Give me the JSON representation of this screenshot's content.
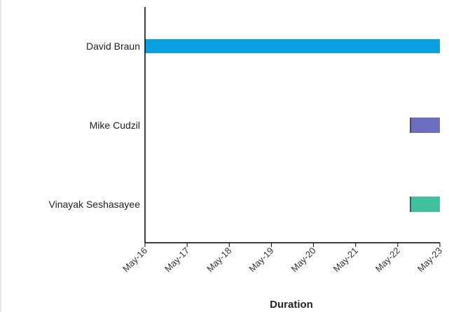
{
  "chart_data": {
    "type": "bar",
    "orientation": "horizontal",
    "subtype": "gantt",
    "categories": [
      "David Braun",
      "Mike Cudzil",
      "Vinayak Seshasayee"
    ],
    "series": [
      {
        "values": [
          {
            "category": "David Braun",
            "start": "May-16",
            "end": "May-23",
            "color": "#0aa0e2"
          },
          {
            "category": "Mike Cudzil",
            "start": "May-22.3",
            "end": "May-23",
            "color": "#6c6cc0"
          },
          {
            "category": "Vinayak Seshasayee",
            "start": "May-22.3",
            "end": "May-23",
            "color": "#3fc19f"
          }
        ]
      }
    ],
    "x_ticks": [
      "May-16",
      "May-17",
      "May-18",
      "May-19",
      "May-20",
      "May-21",
      "May-22",
      "May-23"
    ],
    "xlabel": "Duration",
    "ylabel": "",
    "title": "",
    "grid": false,
    "legend": "none"
  }
}
